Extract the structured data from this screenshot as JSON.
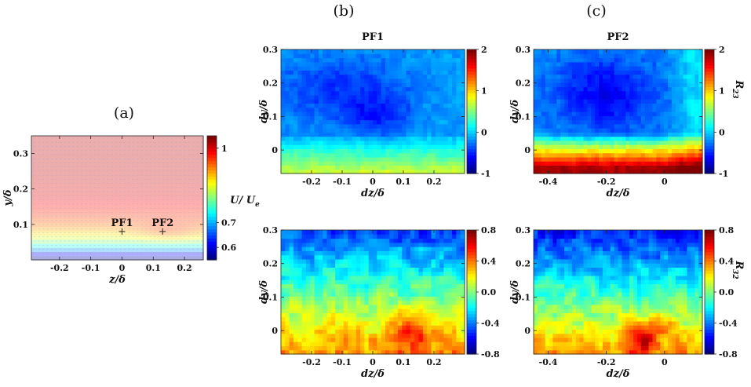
{
  "panel_labels": [
    "(a)",
    "(b)",
    "(c)"
  ],
  "chart_data": [
    {
      "id": "a",
      "type": "heatmap",
      "title": "",
      "xlabel": "z/δ",
      "ylabel": "y/δ",
      "colorbar_label": "U/ U_e",
      "xlim": [
        -0.29,
        0.26
      ],
      "ylim": [
        0.0,
        0.35
      ],
      "xticks": [
        -0.2,
        -0.1,
        0,
        0.1,
        0.2
      ],
      "xtick_labels": [
        "-0.2",
        "-0.1",
        "0",
        "0.1",
        "0.2"
      ],
      "yticks": [
        0.1,
        0.2,
        0.3
      ],
      "ytick_labels": [
        "0.1",
        "0.2",
        "0.3"
      ],
      "clim": [
        0.55,
        1.05
      ],
      "cticks": [
        0.6,
        0.7,
        1
      ],
      "ctick_labels": [
        "0.6",
        "0.7",
        "1"
      ],
      "colormap": "jet",
      "alpha": 0.32,
      "field": "velocity",
      "markers": [
        {
          "label": "PF1",
          "z": 0.0,
          "y": 0.08
        },
        {
          "label": "PF2",
          "z": 0.13,
          "y": 0.08
        }
      ]
    },
    {
      "id": "b-top",
      "type": "heatmap",
      "title": "PF1",
      "xlabel": "dz/δ",
      "ylabel": "dy/δ",
      "colorbar_label": "",
      "xlim": [
        -0.3,
        0.3
      ],
      "ylim": [
        -0.07,
        0.3
      ],
      "xticks": [
        -0.2,
        -0.1,
        0,
        0.1,
        0.2
      ],
      "xtick_labels": [
        "-0.2",
        "-0.1",
        "0",
        "0.1",
        "0.2"
      ],
      "yticks": [
        0,
        0.1,
        0.2,
        0.3
      ],
      "ytick_labels": [
        "0",
        "0.1",
        "0.2",
        "0.3"
      ],
      "clim": [
        -1,
        2
      ],
      "cticks": [
        -1,
        0,
        1,
        2
      ],
      "ctick_labels": [
        "-1",
        "0",
        "1",
        "2"
      ],
      "colormap": "jet",
      "alpha": 1,
      "field": "r23_pf1"
    },
    {
      "id": "c-top",
      "type": "heatmap",
      "title": "PF2",
      "xlabel": "dz/δ",
      "ylabel": "dy/δ",
      "colorbar_label": "R_23",
      "xlim": [
        -0.45,
        0.13
      ],
      "ylim": [
        -0.07,
        0.3
      ],
      "xticks": [
        -0.4,
        -0.2,
        0
      ],
      "xtick_labels": [
        "-0.4",
        "-0.2",
        "0"
      ],
      "yticks": [
        0,
        0.1,
        0.2,
        0.3
      ],
      "ytick_labels": [
        "0",
        "0.1",
        "0.2",
        "0.3"
      ],
      "clim": [
        -1,
        2
      ],
      "cticks": [
        -1,
        0,
        1,
        2
      ],
      "ctick_labels": [
        "-1",
        "0",
        "1",
        "2"
      ],
      "colormap": "jet",
      "alpha": 1,
      "field": "r23_pf2"
    },
    {
      "id": "b-bottom",
      "type": "heatmap",
      "title": "",
      "xlabel": "dz/δ",
      "ylabel": "dy/δ",
      "colorbar_label": "",
      "xlim": [
        -0.3,
        0.3
      ],
      "ylim": [
        -0.07,
        0.3
      ],
      "xticks": [
        -0.2,
        -0.1,
        0,
        0.1,
        0.2
      ],
      "xtick_labels": [
        "-0.2",
        "-0.1",
        "0",
        "0.1",
        "0.2"
      ],
      "yticks": [
        0,
        0.1,
        0.2,
        0.3
      ],
      "ytick_labels": [
        "0",
        "0.1",
        "0.2",
        "0.3"
      ],
      "clim": [
        -0.8,
        0.8
      ],
      "cticks": [
        -0.8,
        -0.4,
        0.0,
        0.4,
        0.8
      ],
      "ctick_labels": [
        "-0.8",
        "-0.4",
        "0.0",
        "0.4",
        "0.8"
      ],
      "colormap": "jet",
      "alpha": 1,
      "field": "r32_pf1"
    },
    {
      "id": "c-bottom",
      "type": "heatmap",
      "title": "",
      "xlabel": "dz/δ",
      "ylabel": "dy/δ",
      "colorbar_label": "R_32",
      "xlim": [
        -0.45,
        0.13
      ],
      "ylim": [
        -0.07,
        0.3
      ],
      "xticks": [
        -0.4,
        -0.2,
        0
      ],
      "xtick_labels": [
        "-0.4",
        "-0.2",
        "0"
      ],
      "yticks": [
        0,
        0.1,
        0.2,
        0.3
      ],
      "ytick_labels": [
        "0",
        "0.1",
        "0.2",
        "0.3"
      ],
      "clim": [
        -0.8,
        0.8
      ],
      "cticks": [
        -0.8,
        -0.4,
        0.0,
        0.4,
        0.8
      ],
      "ctick_labels": [
        "-0.8",
        "-0.4",
        "0.0",
        "0.4",
        "0.8"
      ],
      "colormap": "jet",
      "alpha": 1,
      "field": "r32_pf2"
    }
  ]
}
